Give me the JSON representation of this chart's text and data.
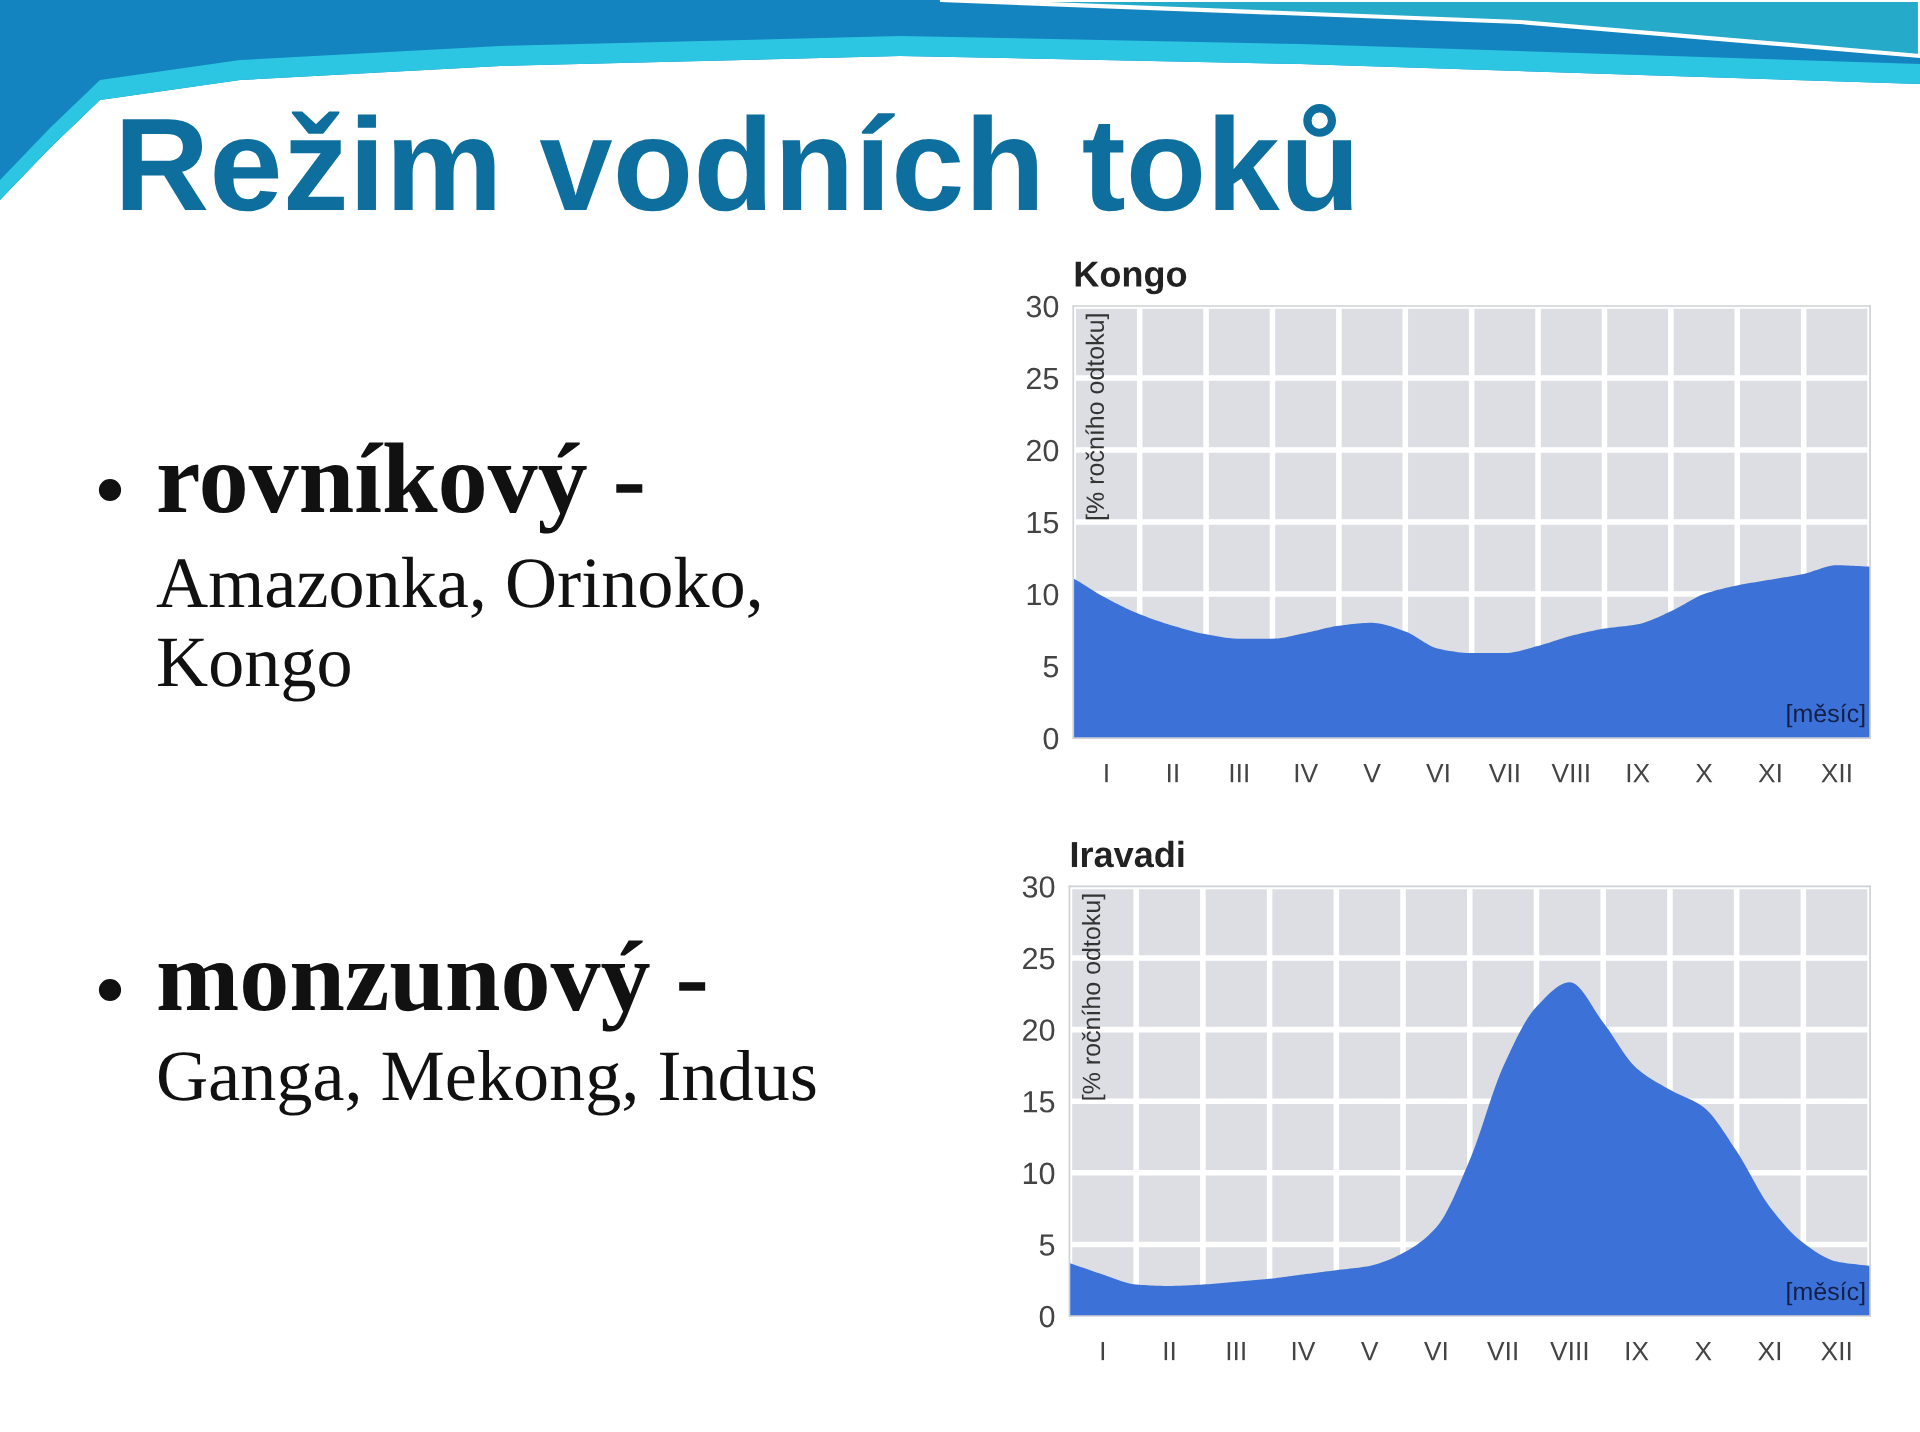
{
  "chart_data": [
    {
      "type": "other",
      "title": "Režim vodních toků",
      "annotations": [
        "rovníkový -",
        "Amazonka, Orinoko,\nKongo",
        "monzunový -",
        "Ganga, Mekong, Indus"
      ]
    },
    {
      "type": "area",
      "title": "Kongo",
      "ylabel": "[% ročního odtoku]",
      "xlabel": "[měsíc]",
      "color": "#3c72d8",
      "categories": [
        null,
        "I",
        null,
        "II",
        null,
        "III",
        null,
        "IV",
        null,
        "V",
        null,
        "VI",
        null,
        "VII",
        null,
        "VIII",
        null,
        "IX",
        null,
        "X",
        null,
        "XI",
        null,
        "XII",
        null
      ],
      "values": [
        11.1,
        9.7,
        8.6,
        7.8,
        7.2,
        6.9,
        6.9,
        7.3,
        7.8,
        8.0,
        7.4,
        6.2,
        5.9,
        5.9,
        6.4,
        7.1,
        7.6,
        7.9,
        8.8,
        10.0,
        10.6,
        11.0,
        11.4,
        12.0,
        11.9
      ],
      "ylim": [
        0,
        30
      ],
      "yticks": [
        0,
        5,
        10,
        15,
        20,
        25,
        30
      ],
      "grid": true
    },
    {
      "type": "area",
      "title": "Iravadi",
      "ylabel": "[% ročního odtoku]",
      "xlabel": "[měsíc]",
      "color": "#3c72d8",
      "categories": [
        null,
        "I",
        null,
        "II",
        null,
        "III",
        null,
        "IV",
        null,
        "V",
        null,
        "VI",
        null,
        "VII",
        null,
        "VIII",
        null,
        "IX",
        null,
        "X",
        null,
        "XI",
        null,
        "XII",
        null
      ],
      "values": [
        3.7,
        2.9,
        2.2,
        2.1,
        2.2,
        2.4,
        2.6,
        2.9,
        3.2,
        3.5,
        4.4,
        6.2,
        10.9,
        17.4,
        21.6,
        23.3,
        20.5,
        17.3,
        15.8,
        14.6,
        11.5,
        7.6,
        5.1,
        3.8,
        3.5
      ],
      "ylim": [
        0,
        30
      ],
      "yticks": [
        0,
        5,
        10,
        15,
        20,
        25,
        30
      ],
      "grid": true
    }
  ]
}
